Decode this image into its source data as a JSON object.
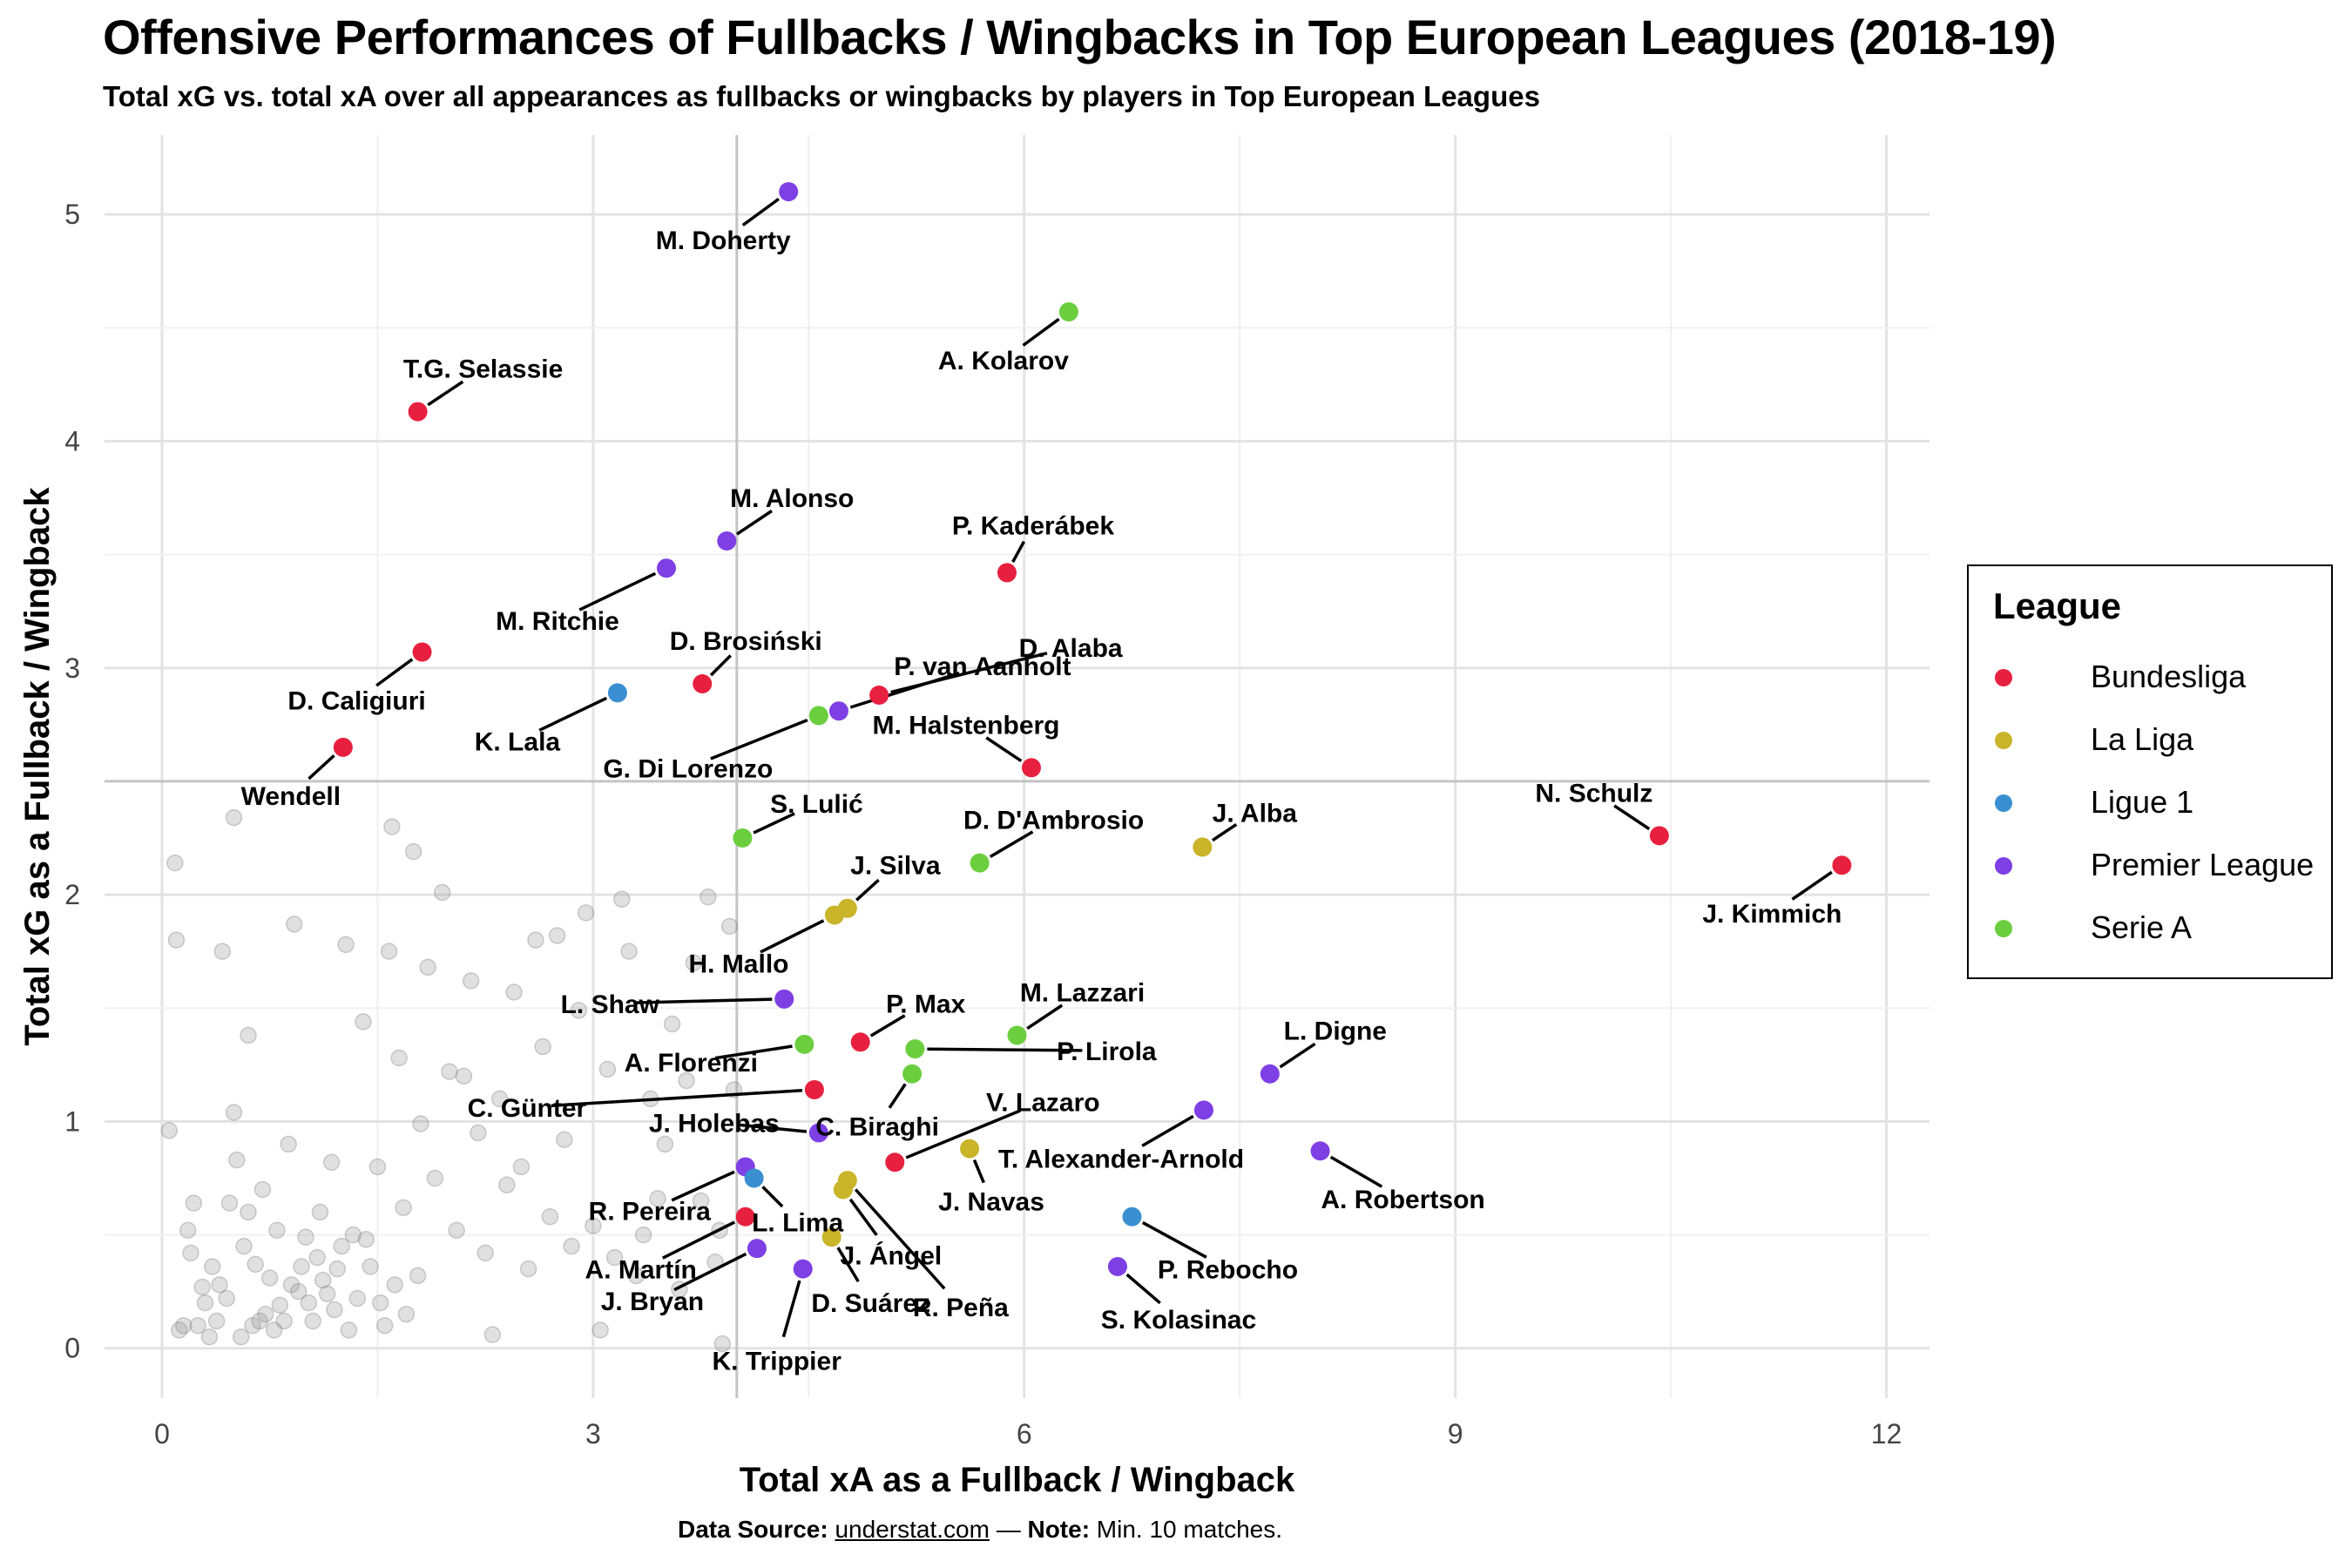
{
  "header": {
    "title": "Offensive Performances of Fullbacks / Wingbacks in Top European Leagues (2018-19)",
    "subtitle": "Total xG vs. total xA over all appearances as fullbacks or wingbacks by players in Top European Leagues"
  },
  "caption": {
    "source_label": "Data Source:",
    "source": "understat.com",
    "separator": "—",
    "note_label": "Note:",
    "note": "Min. 10 matches."
  },
  "legend": {
    "title": "League",
    "items": [
      {
        "name": "Bundesliga",
        "color": "#E8203F"
      },
      {
        "name": "La Liga",
        "color": "#C9B42A"
      },
      {
        "name": "Ligue 1",
        "color": "#3A8FD1"
      },
      {
        "name": "Premier League",
        "color": "#7E3FE4"
      },
      {
        "name": "Serie A",
        "color": "#6BCE3E"
      }
    ]
  },
  "chart_data": {
    "type": "scatter",
    "title": "Offensive Performances of Fullbacks / Wingbacks in Top European Leagues (2018-19)",
    "xlabel": "Total xA as a Fullback / Wingback",
    "ylabel": "Total xG as a Fullback / Wingback",
    "xlim": [
      -0.4,
      12.3
    ],
    "ylim": [
      -0.22,
      5.35
    ],
    "xticks": [
      0,
      3,
      6,
      9,
      12
    ],
    "yticks": [
      0,
      1,
      2,
      3,
      4,
      5
    ],
    "grid": true,
    "reference_lines": {
      "x": 4.0,
      "y": 2.5
    },
    "highlighted": [
      {
        "name": "M. Doherty",
        "league": "Premier League",
        "x": 4.36,
        "y": 5.1
      },
      {
        "name": "A. Kolarov",
        "league": "Serie A",
        "x": 6.31,
        "y": 4.57
      },
      {
        "name": "T.G. Selassie",
        "league": "Bundesliga",
        "x": 1.78,
        "y": 4.13
      },
      {
        "name": "M. Alonso",
        "league": "Premier League",
        "x": 3.93,
        "y": 3.56
      },
      {
        "name": "M. Ritchie",
        "league": "Premier League",
        "x": 3.51,
        "y": 3.44
      },
      {
        "name": "P. Kaderábek",
        "league": "Bundesliga",
        "x": 5.88,
        "y": 3.42
      },
      {
        "name": "D. Alaba",
        "league": "Bundesliga",
        "x": 4.99,
        "y": 2.88
      },
      {
        "name": "D. Caligiuri",
        "league": "Bundesliga",
        "x": 1.81,
        "y": 3.07
      },
      {
        "name": "K. Lala",
        "league": "Ligue 1",
        "x": 3.17,
        "y": 2.89
      },
      {
        "name": "D. Brosiński",
        "league": "Bundesliga",
        "x": 3.76,
        "y": 2.93
      },
      {
        "name": "P. van Aanholt",
        "league": "Premier League",
        "x": 4.71,
        "y": 2.81
      },
      {
        "name": "G. Di Lorenzo",
        "league": "Serie A",
        "x": 4.57,
        "y": 2.79
      },
      {
        "name": "M. Halstenberg",
        "league": "Bundesliga",
        "x": 6.05,
        "y": 2.56
      },
      {
        "name": "Wendell",
        "league": "Bundesliga",
        "x": 1.26,
        "y": 2.65
      },
      {
        "name": "N. Schulz",
        "league": "Bundesliga",
        "x": 10.42,
        "y": 2.26
      },
      {
        "name": "J. Kimmich",
        "league": "Bundesliga",
        "x": 11.69,
        "y": 2.13
      },
      {
        "name": "S. Lulić",
        "league": "Serie A",
        "x": 4.04,
        "y": 2.25
      },
      {
        "name": "D. D'Ambrosio",
        "league": "Serie A",
        "x": 5.69,
        "y": 2.14
      },
      {
        "name": "J. Alba",
        "league": "La Liga",
        "x": 7.24,
        "y": 2.21
      },
      {
        "name": "J. Silva",
        "league": "La Liga",
        "x": 4.77,
        "y": 1.94
      },
      {
        "name": "H. Mallo",
        "league": "La Liga",
        "x": 4.68,
        "y": 1.91
      },
      {
        "name": "L. Shaw",
        "league": "Premier League",
        "x": 4.33,
        "y": 1.54
      },
      {
        "name": "P. Max",
        "league": "Bundesliga",
        "x": 4.86,
        "y": 1.35
      },
      {
        "name": "M. Lazzari",
        "league": "Serie A",
        "x": 5.95,
        "y": 1.38
      },
      {
        "name": "A. Florenzi",
        "league": "Serie A",
        "x": 4.47,
        "y": 1.34
      },
      {
        "name": "P. Lirola",
        "league": "Serie A",
        "x": 5.24,
        "y": 1.32
      },
      {
        "name": "L. Digne",
        "league": "Premier League",
        "x": 7.71,
        "y": 1.21
      },
      {
        "name": "C. Günter",
        "league": "Bundesliga",
        "x": 4.54,
        "y": 1.14
      },
      {
        "name": "C. Biraghi",
        "league": "Serie A",
        "x": 5.22,
        "y": 1.21
      },
      {
        "name": "V. Lazaro",
        "league": "Bundesliga",
        "x": 5.1,
        "y": 0.82
      },
      {
        "name": "T. Alexander-Arnold",
        "league": "Premier League",
        "x": 7.25,
        "y": 1.05
      },
      {
        "name": "J. Holebas",
        "league": "Premier League",
        "x": 4.57,
        "y": 0.95
      },
      {
        "name": "J. Navas",
        "league": "La Liga",
        "x": 5.62,
        "y": 0.88
      },
      {
        "name": "A. Robertson",
        "league": "Premier League",
        "x": 8.06,
        "y": 0.87
      },
      {
        "name": "R. Pereira",
        "league": "Premier League",
        "x": 4.06,
        "y": 0.8
      },
      {
        "name": "L. Lima",
        "league": "Ligue 1",
        "x": 4.12,
        "y": 0.75
      },
      {
        "name": "J. Ángel",
        "league": "La Liga",
        "x": 4.74,
        "y": 0.7
      },
      {
        "name": "R. Peña",
        "league": "La Liga",
        "x": 4.77,
        "y": 0.74
      },
      {
        "name": "A. Martín",
        "league": "Bundesliga",
        "x": 4.06,
        "y": 0.58
      },
      {
        "name": "P. Rebocho",
        "league": "Ligue 1",
        "x": 6.75,
        "y": 0.58
      },
      {
        "name": "D. Suárez",
        "league": "La Liga",
        "x": 4.66,
        "y": 0.49
      },
      {
        "name": "J. Bryan",
        "league": "Premier League",
        "x": 4.14,
        "y": 0.44
      },
      {
        "name": "K. Trippier",
        "league": "Premier League",
        "x": 4.46,
        "y": 0.35
      },
      {
        "name": "S. Kolasinac",
        "league": "Premier League",
        "x": 6.65,
        "y": 0.36
      }
    ],
    "others": [
      [
        0.05,
        0.96
      ],
      [
        0.09,
        2.14
      ],
      [
        0.1,
        1.8
      ],
      [
        0.12,
        0.08
      ],
      [
        0.15,
        0.1
      ],
      [
        0.18,
        0.52
      ],
      [
        0.2,
        0.42
      ],
      [
        0.22,
        0.64
      ],
      [
        0.25,
        0.1
      ],
      [
        0.28,
        0.27
      ],
      [
        0.3,
        0.2
      ],
      [
        0.33,
        0.05
      ],
      [
        0.35,
        0.36
      ],
      [
        0.38,
        0.12
      ],
      [
        0.4,
        0.28
      ],
      [
        0.42,
        1.75
      ],
      [
        0.45,
        0.22
      ],
      [
        0.47,
        0.64
      ],
      [
        0.5,
        2.34
      ],
      [
        0.5,
        1.04
      ],
      [
        0.52,
        0.83
      ],
      [
        0.55,
        0.05
      ],
      [
        0.57,
        0.45
      ],
      [
        0.6,
        0.6
      ],
      [
        0.6,
        1.38
      ],
      [
        0.63,
        0.1
      ],
      [
        0.65,
        0.37
      ],
      [
        0.68,
        0.12
      ],
      [
        0.7,
        0.7
      ],
      [
        0.72,
        0.15
      ],
      [
        0.75,
        0.31
      ],
      [
        0.78,
        0.08
      ],
      [
        0.8,
        0.52
      ],
      [
        0.82,
        0.19
      ],
      [
        0.85,
        0.12
      ],
      [
        0.88,
        0.9
      ],
      [
        0.9,
        0.28
      ],
      [
        0.92,
        1.87
      ],
      [
        0.95,
        0.25
      ],
      [
        0.97,
        0.36
      ],
      [
        1.0,
        0.49
      ],
      [
        1.02,
        0.2
      ],
      [
        1.05,
        0.12
      ],
      [
        1.08,
        0.4
      ],
      [
        1.1,
        0.6
      ],
      [
        1.12,
        0.3
      ],
      [
        1.15,
        0.24
      ],
      [
        1.18,
        0.82
      ],
      [
        1.2,
        0.17
      ],
      [
        1.22,
        0.35
      ],
      [
        1.25,
        0.45
      ],
      [
        1.28,
        1.78
      ],
      [
        1.3,
        0.08
      ],
      [
        1.33,
        0.5
      ],
      [
        1.36,
        0.22
      ],
      [
        1.4,
        1.44
      ],
      [
        1.42,
        0.48
      ],
      [
        1.45,
        0.36
      ],
      [
        1.5,
        0.8
      ],
      [
        1.52,
        0.2
      ],
      [
        1.55,
        0.1
      ],
      [
        1.58,
        1.75
      ],
      [
        1.6,
        2.3
      ],
      [
        1.62,
        0.28
      ],
      [
        1.65,
        1.28
      ],
      [
        1.68,
        0.62
      ],
      [
        1.7,
        0.15
      ],
      [
        1.75,
        2.19
      ],
      [
        1.78,
        0.32
      ],
      [
        1.8,
        0.99
      ],
      [
        1.85,
        1.68
      ],
      [
        1.9,
        0.75
      ],
      [
        1.95,
        2.01
      ],
      [
        2.0,
        1.22
      ],
      [
        2.05,
        0.52
      ],
      [
        2.1,
        1.2
      ],
      [
        2.15,
        1.62
      ],
      [
        2.2,
        0.95
      ],
      [
        2.25,
        0.42
      ],
      [
        2.3,
        0.06
      ],
      [
        2.35,
        1.1
      ],
      [
        2.4,
        0.72
      ],
      [
        2.45,
        1.57
      ],
      [
        2.5,
        0.8
      ],
      [
        2.55,
        0.35
      ],
      [
        2.6,
        1.8
      ],
      [
        2.65,
        1.33
      ],
      [
        2.7,
        0.58
      ],
      [
        2.75,
        1.82
      ],
      [
        2.8,
        0.92
      ],
      [
        2.85,
        0.45
      ],
      [
        2.9,
        1.49
      ],
      [
        2.95,
        1.92
      ],
      [
        3.0,
        0.54
      ],
      [
        3.05,
        0.08
      ],
      [
        3.1,
        1.23
      ],
      [
        3.15,
        0.4
      ],
      [
        3.2,
        1.98
      ],
      [
        3.25,
        1.75
      ],
      [
        3.3,
        0.32
      ],
      [
        3.35,
        0.5
      ],
      [
        3.4,
        1.1
      ],
      [
        3.45,
        0.66
      ],
      [
        3.5,
        0.9
      ],
      [
        3.55,
        1.43
      ],
      [
        3.6,
        0.26
      ],
      [
        3.65,
        1.18
      ],
      [
        3.7,
        1.7
      ],
      [
        3.75,
        0.65
      ],
      [
        3.8,
        1.99
      ],
      [
        3.85,
        0.38
      ],
      [
        3.88,
        0.52
      ],
      [
        3.9,
        0.02
      ],
      [
        3.95,
        1.86
      ],
      [
        3.98,
        1.14
      ]
    ]
  }
}
